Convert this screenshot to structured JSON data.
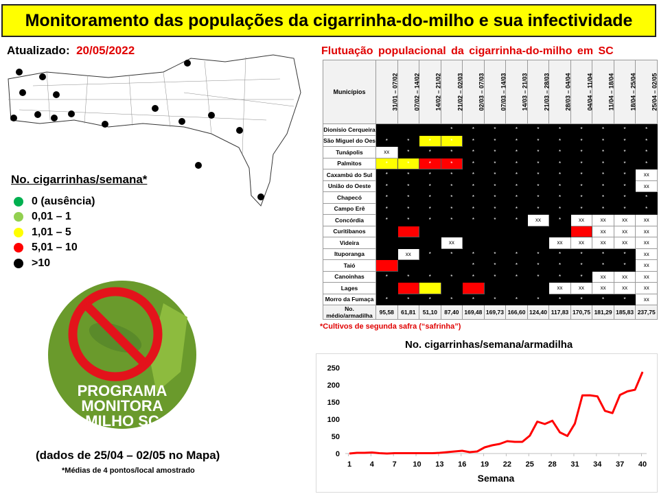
{
  "title": "Monitoramento das populações da cigarrinha-do-milho e sua infectividade",
  "updated": {
    "label": "Atualizado",
    "date": "20/05/2022"
  },
  "legend": {
    "title": "No. cigarrinhas/semana*",
    "items": [
      {
        "label": "0 (ausência)",
        "color": "#00b050"
      },
      {
        "label": "0,01 – 1",
        "color": "#92d050"
      },
      {
        "label": "1,01 – 5",
        "color": "#ffff00"
      },
      {
        "label": "5,01 – 10",
        "color": "#ff0000"
      },
      {
        "label": ">10",
        "color": "#000000"
      }
    ]
  },
  "logo": {
    "text": [
      "PROGRAMA",
      "MONITORA",
      "MILHO SC"
    ]
  },
  "map_note": "(dados de 25/04 – 02/05 no Mapa)",
  "footnote": "*Médias de 4 pontos/local amostrado",
  "table": {
    "title": "Flutuação populacional da cigarrinha-do-milho em SC",
    "header": "Municípios",
    "weeks": [
      "31/01 – 07/02",
      "07/02 – 14/02",
      "14/02 – 21/02",
      "21/02 – 02/03",
      "02/03 – 07/03",
      "07/03 – 14/03",
      "14/03 – 21/03",
      "21/03 – 28/03",
      "28/03 – 04/04",
      "04/04 – 11/04",
      "11/04 – 18/04",
      "18/04 – 25/04",
      "25/04 – 02/05"
    ],
    "rows": [
      {
        "name": "Dionísio Cerqueira",
        "cells": [
          "b",
          "b",
          "b",
          "B",
          "B",
          "B",
          "B",
          "B",
          "B",
          "B",
          "B",
          "B",
          "B"
        ]
      },
      {
        "name": "São Miguel do Oeste",
        "cells": [
          "B",
          "B",
          "Y",
          "Y",
          "B",
          "B",
          "B",
          "B",
          "B",
          "B",
          "B",
          "B",
          "B"
        ]
      },
      {
        "name": "Tunápolis",
        "cells": [
          "W",
          "B",
          "B",
          "B",
          "B",
          "B",
          "B",
          "B",
          "B",
          "B",
          "B",
          "B",
          "B"
        ]
      },
      {
        "name": "Palmitos",
        "cells": [
          "Y",
          "Y",
          "R",
          "R",
          "B",
          "B",
          "B",
          "B",
          "B",
          "B",
          "B",
          "B",
          "B"
        ]
      },
      {
        "name": "Caxambú do Sul",
        "cells": [
          "B",
          "B",
          "B",
          "B",
          "B",
          "B",
          "B",
          "B",
          "B",
          "B",
          "B",
          "B",
          "W"
        ]
      },
      {
        "name": "União do Oeste",
        "cells": [
          "B",
          "B",
          "B",
          "B",
          "B",
          "B",
          "B",
          "B",
          "B",
          "B",
          "B",
          "B",
          "W"
        ]
      },
      {
        "name": "Chapecó",
        "cells": [
          "B",
          "B",
          "B",
          "B",
          "B",
          "B",
          "B",
          "B",
          "B",
          "B",
          "B",
          "B",
          "B"
        ]
      },
      {
        "name": "Campo Erê",
        "cells": [
          "B",
          "B",
          "B",
          "B",
          "B",
          "B",
          "B",
          "B",
          "B",
          "B",
          "B",
          "B",
          "B"
        ]
      },
      {
        "name": "Concórdia",
        "cells": [
          "B",
          "B",
          "B",
          "B",
          "B",
          "B",
          "B",
          "W",
          "B",
          "W",
          "W",
          "W",
          "W"
        ]
      },
      {
        "name": "Curitibanos",
        "cells": [
          "b",
          "r",
          "b",
          "b",
          "b",
          "b",
          "b",
          "b",
          "b",
          "r",
          "W",
          "W",
          "W"
        ]
      },
      {
        "name": "Videira",
        "cells": [
          "b",
          "b",
          "b",
          "W",
          "b",
          "b",
          "b",
          "b",
          "W",
          "W",
          "W",
          "W",
          "W"
        ]
      },
      {
        "name": "Ituporanga",
        "cells": [
          "b",
          "W",
          "B",
          "B",
          "B",
          "B",
          "B",
          "B",
          "B",
          "B",
          "B",
          "B",
          "W"
        ]
      },
      {
        "name": "Taió",
        "cells": [
          "r",
          "b",
          "b",
          "b",
          "B",
          "B",
          "B",
          "B",
          "B",
          "B",
          "B",
          "B",
          "W"
        ]
      },
      {
        "name": "Canoinhas",
        "cells": [
          "B",
          "B",
          "B",
          "B",
          "B",
          "B",
          "B",
          "B",
          "B",
          "B",
          "W",
          "W",
          "W"
        ]
      },
      {
        "name": "Lages",
        "cells": [
          "b",
          "r",
          "y",
          "b",
          "r",
          "b",
          "b",
          "b",
          "W",
          "W",
          "W",
          "W",
          "W"
        ]
      },
      {
        "name": "Morro da Fumaça",
        "cells": [
          "B",
          "B",
          "B",
          "B",
          "B",
          "B",
          "B",
          "B",
          "B",
          "B",
          "B",
          "B",
          "W"
        ]
      }
    ],
    "mark_star": "*",
    "mark_xx": "xx",
    "avg_label": "No. médio/armadilha",
    "averages": [
      "95,58",
      "61,81",
      "51,10",
      "87,40",
      "169,48",
      "169,73",
      "166,60",
      "124,40",
      "117,83",
      "170,75",
      "181,29",
      "185,83",
      "237,75"
    ],
    "note": "*Cultivos de segunda safra (“safrinha”)"
  },
  "chart_data": {
    "type": "line",
    "title": "No. cigarrinhas/semana/armadilha",
    "xlabel": "Semana",
    "ylabel": "",
    "x": [
      1,
      2,
      3,
      4,
      5,
      6,
      7,
      8,
      9,
      10,
      11,
      12,
      13,
      14,
      15,
      16,
      17,
      18,
      19,
      20,
      21,
      22,
      23,
      24,
      25,
      26,
      27,
      28,
      29,
      30,
      31,
      32,
      33,
      34,
      35,
      36,
      37,
      38,
      39,
      40
    ],
    "values": [
      0,
      2,
      2,
      3,
      1,
      0,
      1,
      1,
      1,
      1,
      1,
      1,
      2,
      4,
      6,
      8,
      4,
      6,
      18,
      24,
      28,
      36,
      34,
      34,
      52,
      93,
      86,
      95.58,
      61.81,
      51.1,
      87.4,
      169.48,
      169.73,
      166.6,
      124.4,
      117.83,
      170.75,
      181.29,
      185.83,
      237.75
    ],
    "xticks": [
      1,
      4,
      7,
      10,
      13,
      16,
      19,
      22,
      25,
      28,
      31,
      34,
      37,
      40
    ],
    "yticks": [
      0,
      50,
      100,
      150,
      200,
      250
    ],
    "ylim": [
      0,
      250
    ],
    "color": "#ff0000",
    "grid": false
  }
}
